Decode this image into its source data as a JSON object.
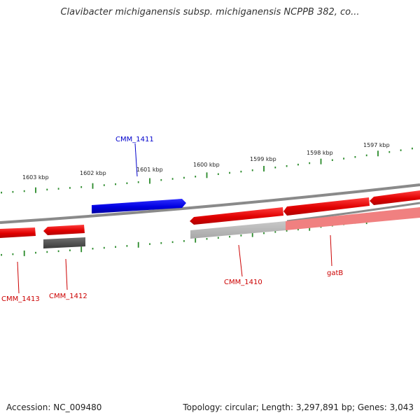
{
  "title": "Clavibacter michiganensis subsp. michiganensis NCPPB 382, co...",
  "footer": {
    "accession": "Accession: NC_009480",
    "summary": "Topology: circular; Length: 3,297,891 bp; Genes: 3,043"
  },
  "colors": {
    "forward_gene": "#0000ee",
    "reverse_gene": "#ee0000",
    "pseudo_gene": "#555555",
    "backbone": "#888888",
    "ticks": "#2a8a2a"
  },
  "scale_labels": [
    "1603 kbp",
    "1602 kbp",
    "1601 kbp",
    "1600 kbp",
    "1599 kbp",
    "1598 kbp",
    "1597 kbp"
  ],
  "gene_labels": {
    "cmm1411": "CMM_1411",
    "cmm1413": "CMM_1413",
    "cmm1412": "CMM_1412",
    "cmm1410": "CMM_1410",
    "gatB": "gatB"
  }
}
